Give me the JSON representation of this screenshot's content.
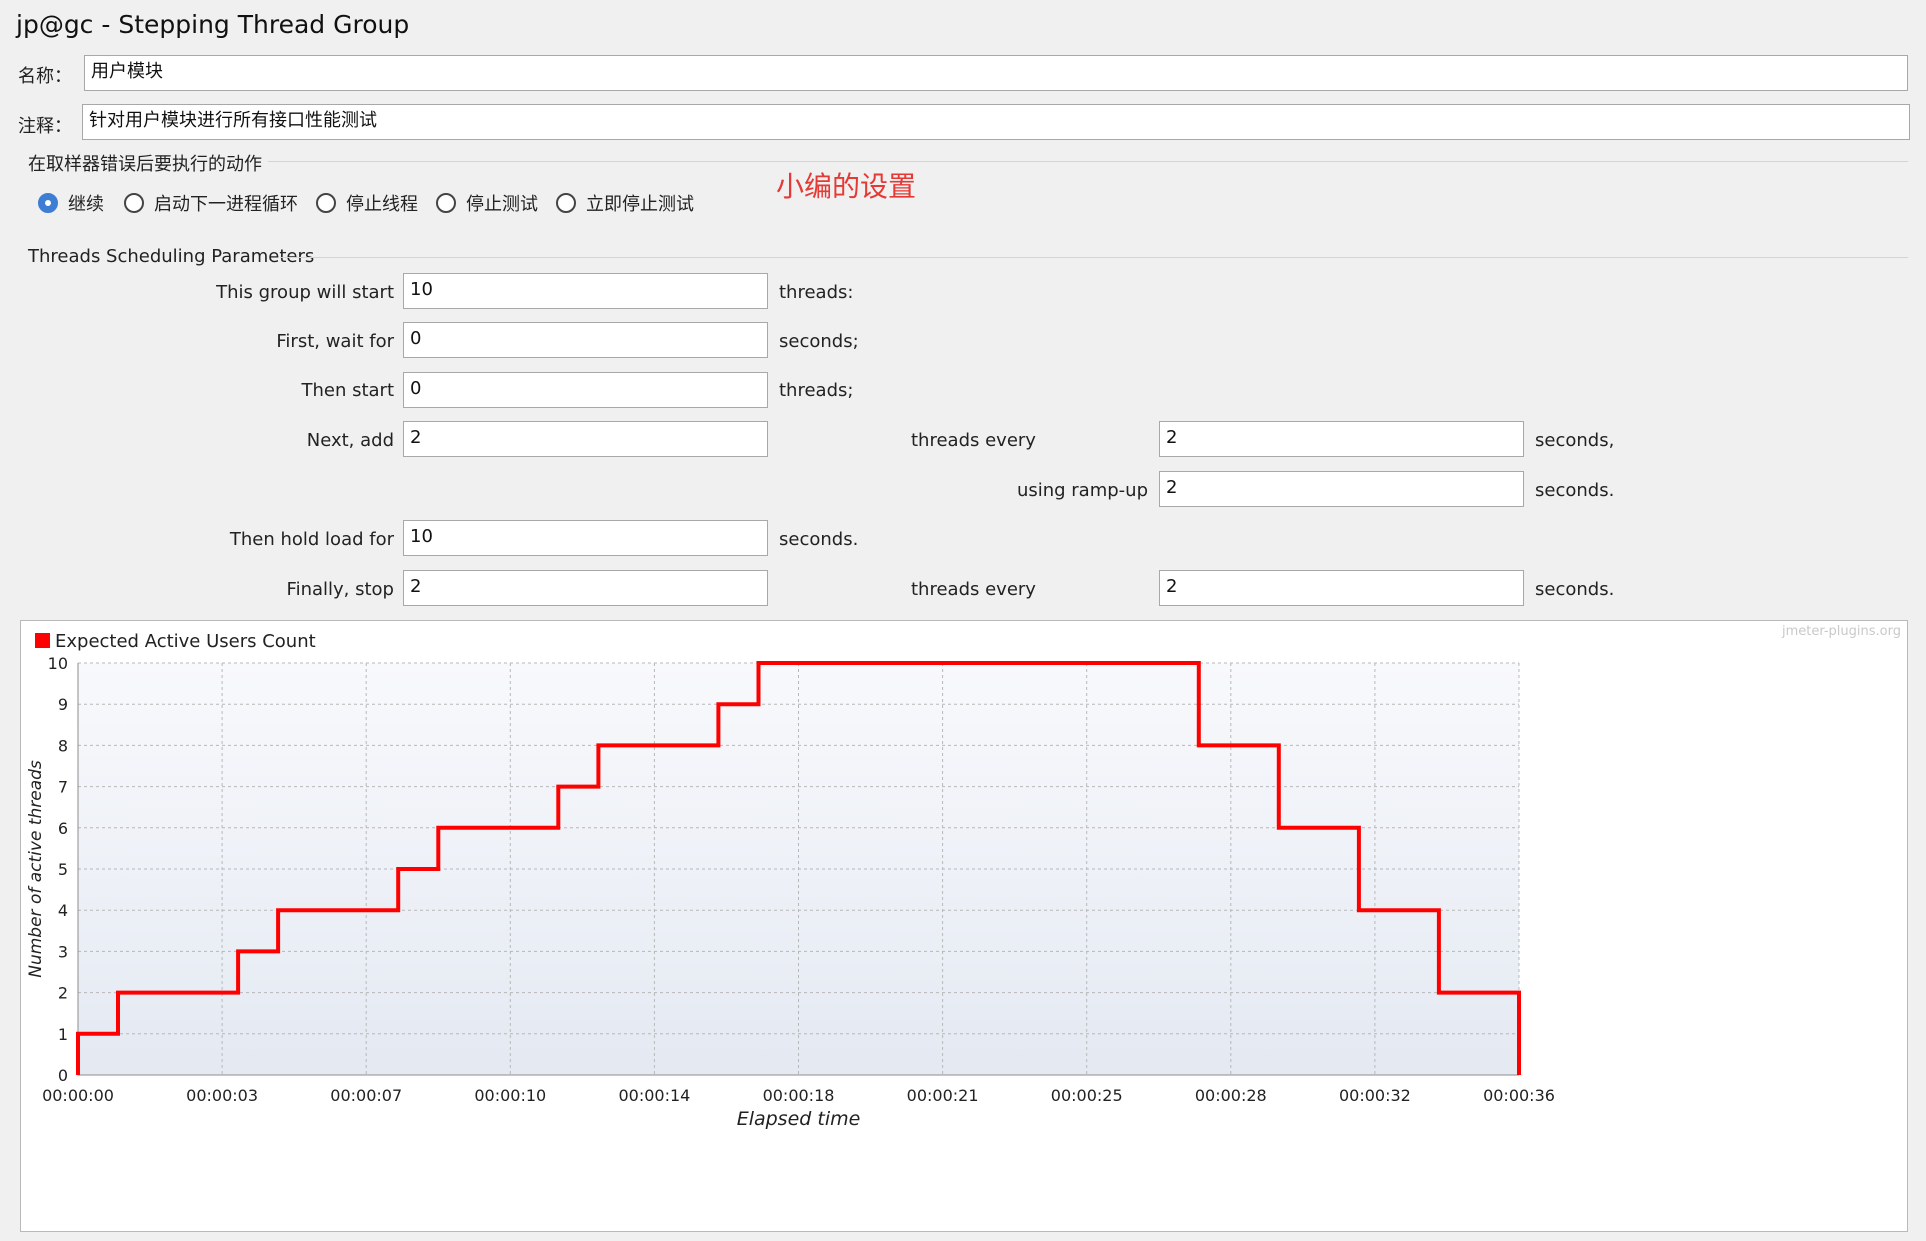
{
  "window": {
    "title": "jp@gc - Stepping Thread Group"
  },
  "name_field": {
    "label": "名称：",
    "value": "用户模块"
  },
  "comment_field": {
    "label": "注释：",
    "value": "针对用户模块进行所有接口性能测试"
  },
  "sampler_error": {
    "legend": "在取样器错误后要执行的动作",
    "options": [
      {
        "label": "继续",
        "checked": true
      },
      {
        "label": "启动下一进程循环",
        "checked": false
      },
      {
        "label": "停止线程",
        "checked": false
      },
      {
        "label": "停止测试",
        "checked": false
      },
      {
        "label": "立即停止测试",
        "checked": false
      }
    ],
    "annotation": "小编的设置"
  },
  "params": {
    "legend": "Threads Scheduling Parameters",
    "rows": {
      "start": {
        "label": "This group will start",
        "value": "10",
        "unit": "threads:"
      },
      "wait": {
        "label": "First, wait for",
        "value": "0",
        "unit": "seconds;"
      },
      "then_start": {
        "label": "Then start",
        "value": "0",
        "unit": "threads;"
      },
      "next_add": {
        "label": "Next, add",
        "value": "2",
        "mid_label": "threads every",
        "value2": "2",
        "unit": "seconds,"
      },
      "ramp_up": {
        "label": "using ramp-up",
        "value": "2",
        "unit": "seconds."
      },
      "hold": {
        "label": "Then hold load for",
        "value": "10",
        "unit": "seconds."
      },
      "stop": {
        "label": "Finally, stop",
        "value": "2",
        "mid_label": "threads every",
        "value2": "2",
        "unit": "seconds."
      }
    }
  },
  "chart_data": {
    "type": "line",
    "legend": [
      "Expected Active Users Count"
    ],
    "watermark": "jmeter-plugins.org",
    "xlabel": "Elapsed time",
    "ylabel": "Number of active threads",
    "ylim": [
      0,
      10
    ],
    "xlim_seconds": [
      0,
      36
    ],
    "y_ticks": [
      "0",
      "1",
      "2",
      "3",
      "4",
      "5",
      "6",
      "7",
      "8",
      "9",
      "10"
    ],
    "x_ticks": [
      {
        "label": "00:00:00",
        "sec": 0
      },
      {
        "label": "00:00:03",
        "sec": 3.6
      },
      {
        "label": "00:00:07",
        "sec": 7.2
      },
      {
        "label": "00:00:10",
        "sec": 10.8
      },
      {
        "label": "00:00:14",
        "sec": 14.4
      },
      {
        "label": "00:00:18",
        "sec": 18.0
      },
      {
        "label": "00:00:21",
        "sec": 21.6
      },
      {
        "label": "00:00:25",
        "sec": 25.2
      },
      {
        "label": "00:00:28",
        "sec": 28.8
      },
      {
        "label": "00:00:32",
        "sec": 32.4
      },
      {
        "label": "00:00:36",
        "sec": 36.0
      }
    ],
    "grid": true,
    "line_color": "#ff0000",
    "series": [
      {
        "name": "Expected Active Users Count",
        "points": [
          [
            0,
            0
          ],
          [
            0,
            1
          ],
          [
            1,
            1
          ],
          [
            1,
            2
          ],
          [
            4,
            2
          ],
          [
            4,
            3
          ],
          [
            5,
            3
          ],
          [
            5,
            4
          ],
          [
            8,
            4
          ],
          [
            8,
            5
          ],
          [
            9,
            5
          ],
          [
            9,
            6
          ],
          [
            12,
            6
          ],
          [
            12,
            7
          ],
          [
            13,
            7
          ],
          [
            13,
            8
          ],
          [
            16,
            8
          ],
          [
            16,
            9
          ],
          [
            17,
            9
          ],
          [
            17,
            10
          ],
          [
            28,
            10
          ],
          [
            28,
            8
          ],
          [
            30,
            8
          ],
          [
            30,
            6
          ],
          [
            32,
            6
          ],
          [
            32,
            4
          ],
          [
            34,
            4
          ],
          [
            34,
            2
          ],
          [
            36,
            2
          ],
          [
            36,
            0
          ]
        ]
      }
    ]
  }
}
